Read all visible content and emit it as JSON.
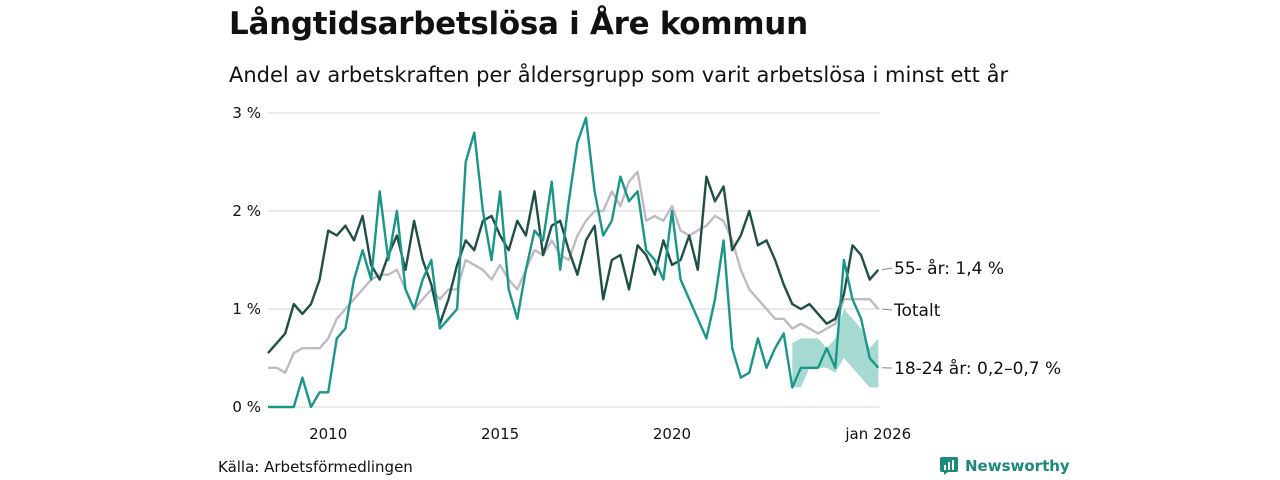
{
  "title": "Långtidsarbetslösa i Åre kommun",
  "subtitle": "Andel av arbetskraften per åldersgrupp som varit arbetslösa i minst ett år",
  "source": "Källa: Arbetsförmedlingen",
  "brand": "Newsworthy",
  "colors": {
    "older": "#1f4f47",
    "total": "#bfbac5",
    "young": "#1a9688",
    "young_band": "#a7d9d3",
    "grid": "#dddddd"
  },
  "chart_data": {
    "type": "line",
    "title": "Långtidsarbetslösa i Åre kommun",
    "subtitle": "Andel av arbetskraften per åldersgrupp som varit arbetslösa i minst ett år",
    "xlabel": "",
    "ylabel": "",
    "xlim": [
      2008.25,
      2026.05
    ],
    "ylim": [
      0,
      3
    ],
    "y_ticks": [
      0,
      1,
      2,
      3
    ],
    "y_tick_labels": [
      "0 %",
      "1 %",
      "2 %",
      "3 %"
    ],
    "x_ticks": [
      2010,
      2015,
      2020,
      2026
    ],
    "x_tick_labels": [
      "2010",
      "2015",
      "2020",
      "jan 2026"
    ],
    "grid": true,
    "series": [
      {
        "name": "55- år",
        "end_label": "55- år: 1,4 %",
        "x": [
          2008.25,
          2008.5,
          2008.75,
          2009,
          2009.25,
          2009.5,
          2009.75,
          2010,
          2010.25,
          2010.5,
          2010.75,
          2011,
          2011.25,
          2011.5,
          2011.75,
          2012,
          2012.25,
          2012.5,
          2012.75,
          2013,
          2013.25,
          2013.5,
          2013.75,
          2014,
          2014.25,
          2014.5,
          2014.75,
          2015,
          2015.25,
          2015.5,
          2015.75,
          2016,
          2016.25,
          2016.5,
          2016.75,
          2017,
          2017.25,
          2017.5,
          2017.75,
          2018,
          2018.25,
          2018.5,
          2018.75,
          2019,
          2019.25,
          2019.5,
          2019.75,
          2020,
          2020.25,
          2020.5,
          2020.75,
          2021,
          2021.25,
          2021.5,
          2021.75,
          2022,
          2022.25,
          2022.5,
          2022.75,
          2023,
          2023.25,
          2023.5,
          2023.75,
          2024,
          2024.25,
          2024.5,
          2024.75,
          2025,
          2025.25,
          2025.5,
          2025.75,
          2026
        ],
        "values": [
          0.55,
          0.65,
          0.75,
          1.05,
          0.95,
          1.05,
          1.3,
          1.8,
          1.75,
          1.85,
          1.7,
          1.95,
          1.45,
          1.3,
          1.55,
          1.75,
          1.4,
          1.9,
          1.5,
          1.25,
          0.85,
          1.1,
          1.45,
          1.7,
          1.6,
          1.9,
          1.95,
          1.75,
          1.6,
          1.9,
          1.75,
          2.2,
          1.55,
          1.85,
          1.9,
          1.6,
          1.35,
          1.7,
          1.85,
          1.1,
          1.5,
          1.55,
          1.2,
          1.65,
          1.55,
          1.35,
          1.7,
          1.45,
          1.5,
          1.75,
          1.4,
          2.35,
          2.1,
          2.25,
          1.6,
          1.75,
          2.0,
          1.65,
          1.7,
          1.5,
          1.25,
          1.05,
          1.0,
          1.05,
          0.95,
          0.85,
          0.9,
          1.15,
          1.65,
          1.55,
          1.3,
          1.4
        ]
      },
      {
        "name": "Totalt",
        "end_label": "Totalt",
        "x": [
          2008.25,
          2008.5,
          2008.75,
          2009,
          2009.25,
          2009.5,
          2009.75,
          2010,
          2010.25,
          2010.5,
          2010.75,
          2011,
          2011.25,
          2011.5,
          2011.75,
          2012,
          2012.25,
          2012.5,
          2012.75,
          2013,
          2013.25,
          2013.5,
          2013.75,
          2014,
          2014.25,
          2014.5,
          2014.75,
          2015,
          2015.25,
          2015.5,
          2015.75,
          2016,
          2016.25,
          2016.5,
          2016.75,
          2017,
          2017.25,
          2017.5,
          2017.75,
          2018,
          2018.25,
          2018.5,
          2018.75,
          2019,
          2019.25,
          2019.5,
          2019.75,
          2020,
          2020.25,
          2020.5,
          2020.75,
          2021,
          2021.25,
          2021.5,
          2021.75,
          2022,
          2022.25,
          2022.5,
          2022.75,
          2023,
          2023.25,
          2023.5,
          2023.75,
          2024,
          2024.25,
          2024.5,
          2024.75,
          2025,
          2025.25,
          2025.5,
          2025.75,
          2026
        ],
        "values": [
          0.4,
          0.4,
          0.35,
          0.55,
          0.6,
          0.6,
          0.6,
          0.7,
          0.9,
          1.0,
          1.1,
          1.2,
          1.3,
          1.35,
          1.35,
          1.4,
          1.2,
          1.0,
          1.1,
          1.2,
          1.1,
          1.2,
          1.2,
          1.5,
          1.45,
          1.4,
          1.3,
          1.45,
          1.3,
          1.2,
          1.4,
          1.6,
          1.55,
          1.7,
          1.55,
          1.5,
          1.75,
          1.9,
          2.0,
          2.0,
          2.2,
          2.05,
          2.3,
          2.4,
          1.9,
          1.95,
          1.9,
          2.05,
          1.8,
          1.75,
          1.8,
          1.85,
          1.95,
          1.9,
          1.7,
          1.4,
          1.2,
          1.1,
          1.0,
          0.9,
          0.9,
          0.8,
          0.85,
          0.8,
          0.75,
          0.8,
          0.85,
          1.1,
          1.1,
          1.1,
          1.1,
          1.0
        ]
      },
      {
        "name": "18-24 år",
        "end_label": "18-24 år: 0,2–0,7 %",
        "x": [
          2008.25,
          2008.5,
          2008.75,
          2009,
          2009.25,
          2009.5,
          2009.75,
          2010,
          2010.25,
          2010.5,
          2010.75,
          2011,
          2011.25,
          2011.5,
          2011.75,
          2012,
          2012.25,
          2012.5,
          2012.75,
          2013,
          2013.25,
          2013.5,
          2013.75,
          2014,
          2014.25,
          2014.5,
          2014.75,
          2015,
          2015.25,
          2015.5,
          2015.75,
          2016,
          2016.25,
          2016.5,
          2016.75,
          2017,
          2017.25,
          2017.5,
          2017.75,
          2018,
          2018.25,
          2018.5,
          2018.75,
          2019,
          2019.25,
          2019.5,
          2019.75,
          2020,
          2020.25,
          2020.5,
          2020.75,
          2021,
          2021.25,
          2021.5,
          2021.75,
          2022,
          2022.25,
          2022.5,
          2022.75,
          2023,
          2023.25,
          2023.5,
          2023.75,
          2024,
          2024.25,
          2024.5,
          2024.75,
          2025,
          2025.25,
          2025.5,
          2025.75,
          2026
        ],
        "values": [
          0,
          0,
          0,
          0,
          0.3,
          0,
          0.15,
          0.15,
          0.7,
          0.8,
          1.3,
          1.6,
          1.3,
          2.2,
          1.5,
          2.0,
          1.2,
          1.0,
          1.3,
          1.5,
          0.8,
          0.9,
          1.0,
          2.5,
          2.8,
          2.0,
          1.5,
          2.2,
          1.2,
          0.9,
          1.4,
          1.8,
          1.7,
          2.3,
          1.4,
          2.1,
          2.7,
          2.95,
          2.2,
          1.75,
          1.9,
          2.35,
          2.1,
          2.2,
          1.6,
          1.5,
          1.3,
          2.0,
          1.3,
          1.1,
          0.9,
          0.7,
          1.1,
          1.7,
          0.6,
          0.3,
          0.35,
          0.7,
          0.4,
          0.6,
          0.75,
          0.2,
          0.4,
          0.4,
          0.4,
          0.6,
          0.4,
          1.5,
          1.1,
          0.9,
          0.5,
          0.4
        ],
        "band": {
          "x": [
            2023.5,
            2023.75,
            2024,
            2024.25,
            2024.5,
            2024.75,
            2025,
            2025.25,
            2025.5,
            2025.75,
            2026
          ],
          "low": [
            0.2,
            0.2,
            0.4,
            0.4,
            0.4,
            0.35,
            0.5,
            0.4,
            0.3,
            0.2,
            0.2
          ],
          "high": [
            0.65,
            0.7,
            0.7,
            0.7,
            0.6,
            0.7,
            1.0,
            0.9,
            0.8,
            0.6,
            0.7
          ]
        }
      }
    ]
  }
}
